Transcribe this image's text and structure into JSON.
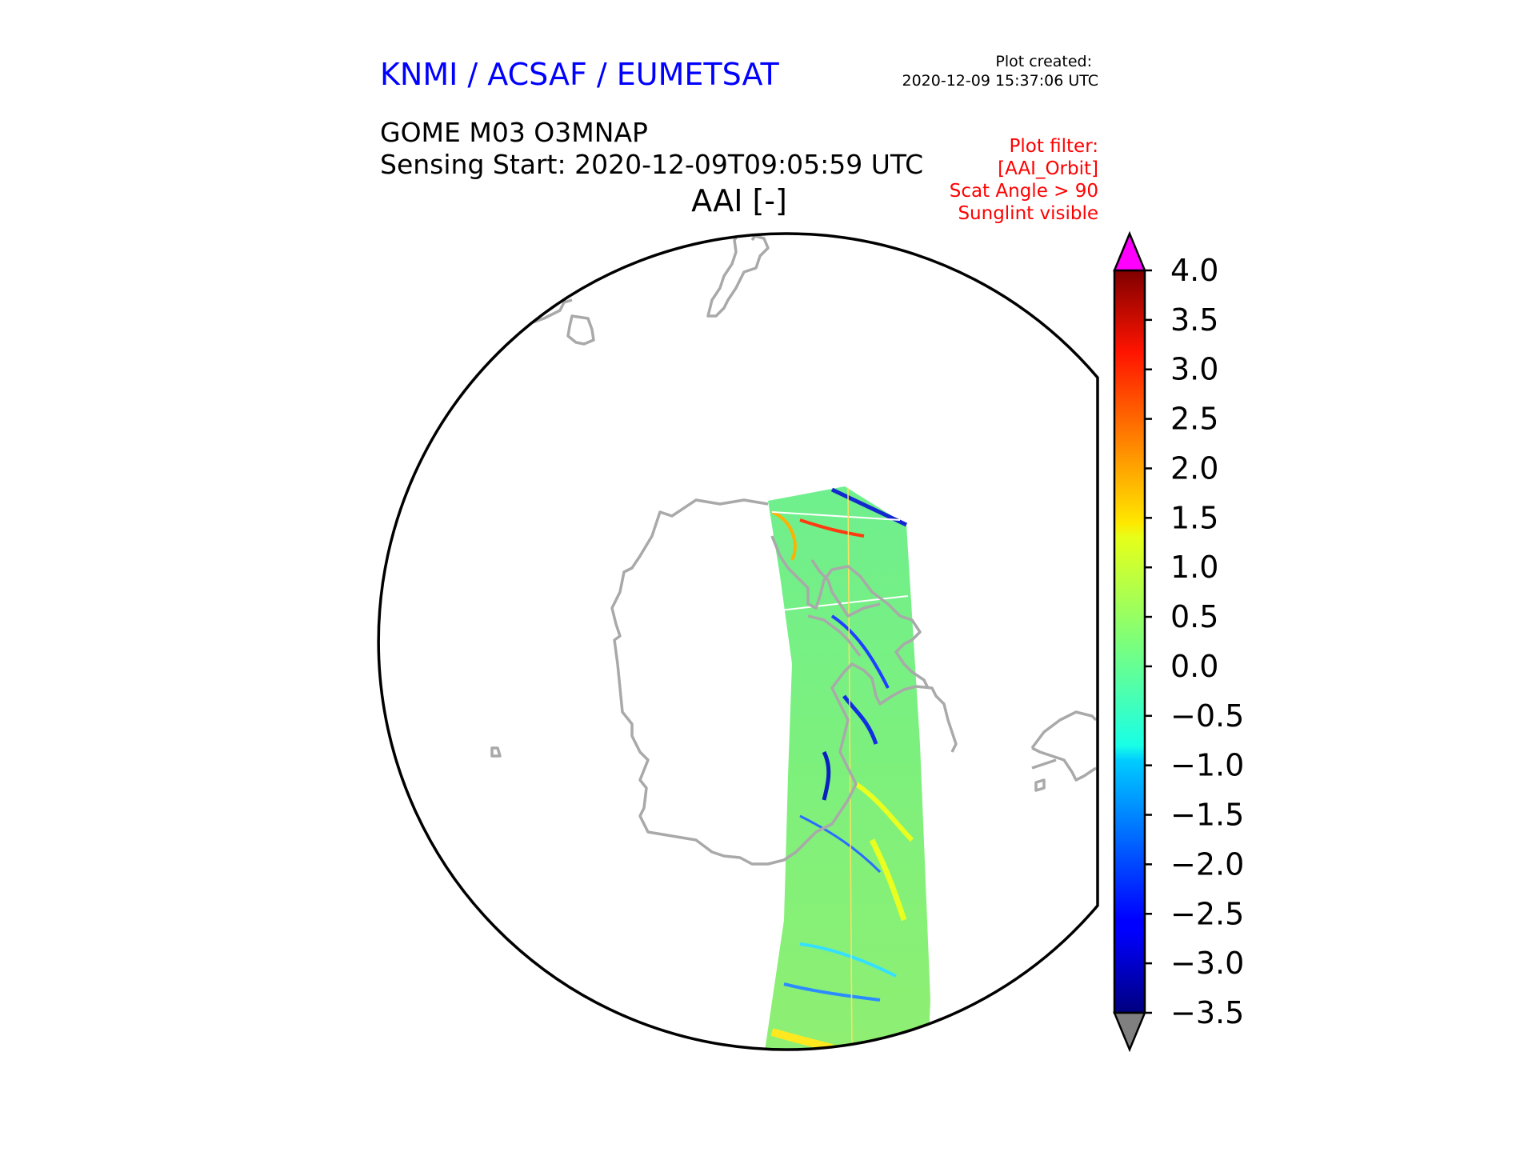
{
  "header": {
    "agency": "KNMI / ACSAF / EUMETSAT",
    "created_label": "Plot created:",
    "created_value": "2020-12-09 15:37:06 UTC",
    "product": "GOME M03 O3MNAP",
    "sensing_start": "Sensing Start: 2020-12-09T09:05:59 UTC",
    "variable": "AAI [-]"
  },
  "filter": {
    "title": "Plot filter:",
    "lines": [
      "[AAI_Orbit]",
      "Scat Angle > 90",
      "Sunglint visible"
    ]
  },
  "colorbar": {
    "min": -3.5,
    "max": 4.0,
    "ticks": [
      "4.0",
      "3.5",
      "3.0",
      "2.5",
      "2.0",
      "1.5",
      "1.0",
      "0.5",
      "0.0",
      "−0.5",
      "−1.0",
      "−1.5",
      "−2.0",
      "−2.5",
      "−3.0",
      "−3.5"
    ],
    "over_color": "#ff00ff",
    "under_color": "#808080",
    "colormap": "jet"
  },
  "colors": {
    "agency_text": "#0000ff",
    "filter_text": "#ff0000",
    "coastline": "#a9a9a9",
    "map_boundary": "#000000"
  }
}
